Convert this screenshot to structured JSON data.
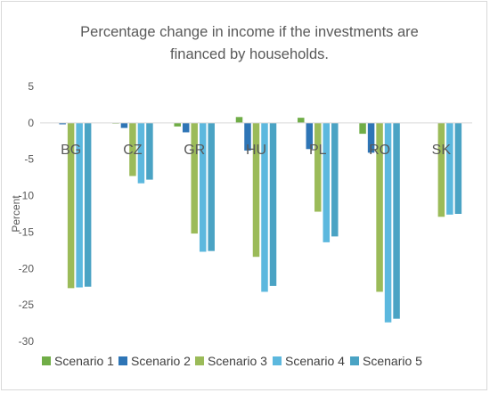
{
  "chart_data": {
    "type": "bar",
    "title": "Percentage change in income if the investments are\nfinanced by households.",
    "ylabel": "Percent",
    "xlabel": "",
    "ylim": [
      -30,
      5
    ],
    "yticks": [
      5,
      0,
      -5,
      -10,
      -15,
      -20,
      -25,
      -30
    ],
    "grid": false,
    "legend_position": "bottom",
    "categories": [
      "BG",
      "CZ",
      "GR",
      "HU",
      "PL",
      "RO",
      "SK"
    ],
    "series": [
      {
        "name": "Scenario 1",
        "color": "#70ad47",
        "values": [
          0.0,
          -0.1,
          -0.5,
          0.8,
          0.7,
          -1.5,
          0.0
        ]
      },
      {
        "name": "Scenario 2",
        "color": "#2e75b6",
        "values": [
          -0.2,
          -0.7,
          -1.3,
          -3.8,
          -3.6,
          -4.1,
          0.0
        ]
      },
      {
        "name": "Scenario 3",
        "color": "#9bbb59",
        "values": [
          -22.7,
          -7.3,
          -15.2,
          -18.4,
          -12.2,
          -23.2,
          -12.9
        ]
      },
      {
        "name": "Scenario 4",
        "color": "#5cb8de",
        "values": [
          -22.6,
          -8.3,
          -17.7,
          -23.2,
          -16.4,
          -27.4,
          -12.6
        ]
      },
      {
        "name": "Scenario 5",
        "color": "#4aa3c4",
        "values": [
          -22.5,
          -7.8,
          -17.6,
          -22.4,
          -15.6,
          -26.9,
          -12.5
        ]
      }
    ]
  }
}
